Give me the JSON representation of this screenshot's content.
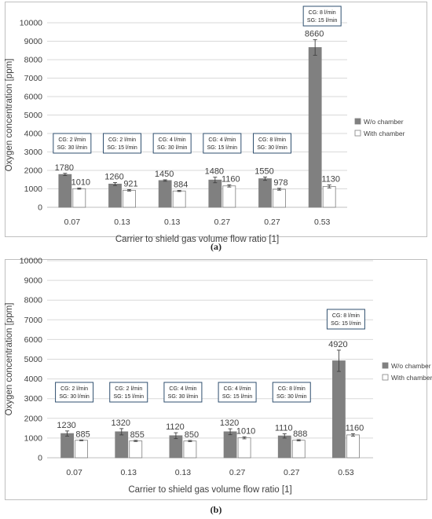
{
  "chart_data": [
    {
      "type": "bar",
      "panel_label": "(a)",
      "ylabel": "Oxygen concentration [ppm]",
      "xlabel": "Carrier to shield gas volume flow ratio [1]",
      "ylim": [
        0,
        10000
      ],
      "yticks": [
        "0",
        "1000",
        "2000",
        "3000",
        "4000",
        "5000",
        "6000",
        "7000",
        "8000",
        "9000",
        "10000"
      ],
      "grid": true,
      "legend_position": "right",
      "categories": [
        "0.07",
        "0.13",
        "0.13",
        "0.27",
        "0.27",
        "0.53"
      ],
      "series": [
        {
          "name": "W/o chamber",
          "color": "#808080",
          "values": [
            1780,
            1260,
            1450,
            1480,
            1550,
            8660
          ],
          "labels": [
            "1780",
            "1260",
            "1450",
            "1480",
            "1550",
            "8660"
          ],
          "errors": [
            60,
            80,
            40,
            150,
            90,
            420
          ]
        },
        {
          "name": "With chamber",
          "color": "#ffffff",
          "values": [
            1010,
            921,
            884,
            1160,
            978,
            1130
          ],
          "labels": [
            "1010",
            "921",
            "884",
            "1160",
            "978",
            "1130"
          ],
          "errors": [
            30,
            40,
            30,
            60,
            50,
            80
          ]
        }
      ],
      "annotations": [
        {
          "line1": "CG: 2 l/min",
          "line2": "SG: 30 l/min"
        },
        {
          "line1": "CG: 2 l/min",
          "line2": "SG: 15 l/min"
        },
        {
          "line1": "CG: 4 l/min",
          "line2": "SG: 30 l/min"
        },
        {
          "line1": "CG: 4 l/min",
          "line2": "SG: 15 l/min"
        },
        {
          "line1": "CG: 8 l/min",
          "line2": "SG: 30 l/min"
        },
        {
          "line1": "CG: 8 l/min",
          "line2": "SG: 15 l/min"
        }
      ]
    },
    {
      "type": "bar",
      "panel_label": "(b)",
      "ylabel": "Oxygen concentration [ppm]",
      "xlabel": "Carrier to shield gas volume flow ratio [1]",
      "ylim": [
        0,
        10000
      ],
      "yticks": [
        "0",
        "1000",
        "2000",
        "3000",
        "4000",
        "5000",
        "6000",
        "7000",
        "8000",
        "9000",
        "10000"
      ],
      "grid": true,
      "legend_position": "right",
      "categories": [
        "0.07",
        "0.13",
        "0.13",
        "0.27",
        "0.27",
        "0.53"
      ],
      "series": [
        {
          "name": "W/o chamber",
          "color": "#808080",
          "values": [
            1230,
            1320,
            1120,
            1320,
            1110,
            4920
          ],
          "labels": [
            "1230",
            "1320",
            "1120",
            "1320",
            "1110",
            "4920"
          ],
          "errors": [
            130,
            160,
            150,
            150,
            110,
            540
          ]
        },
        {
          "name": "With chamber",
          "color": "#ffffff",
          "values": [
            885,
            855,
            850,
            1010,
            888,
            1160
          ],
          "labels": [
            "885",
            "855",
            "850",
            "1010",
            "888",
            "1160"
          ],
          "errors": [
            20,
            30,
            30,
            50,
            30,
            60
          ]
        }
      ],
      "annotations": [
        {
          "line1": "CG: 2 l/min",
          "line2": "SG: 30 l/min"
        },
        {
          "line1": "CG: 2 l/min",
          "line2": "SG: 15 l/min"
        },
        {
          "line1": "CG: 4 l/min",
          "line2": "SG: 30 l/min"
        },
        {
          "line1": "CG: 4 l/min",
          "line2": "SG: 15 l/min"
        },
        {
          "line1": "CG: 8 l/min",
          "line2": "SG: 30 l/min"
        },
        {
          "line1": "CG: 8 l/min",
          "line2": "SG: 15 l/min"
        }
      ]
    }
  ]
}
